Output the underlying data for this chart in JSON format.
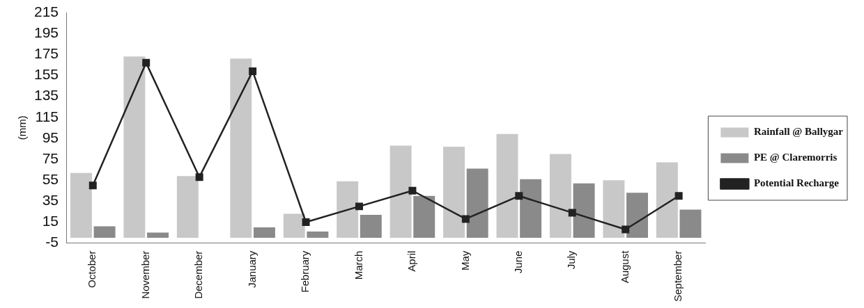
{
  "chart_data": {
    "type": "bar",
    "ylabel": "(mm)",
    "categories": [
      "October",
      "November",
      "December",
      "January",
      "February",
      "March",
      "April",
      "May",
      "June",
      "July",
      "August",
      "September"
    ],
    "series": [
      {
        "name": "Rainfall @ Ballygar",
        "color": "#c8c8c8",
        "values": [
          62,
          173,
          59,
          171,
          23,
          54,
          88,
          87,
          99,
          80,
          55,
          72
        ]
      },
      {
        "name": "PE @ Claremorris",
        "color": "#8a8a8a",
        "values": [
          11,
          5,
          0,
          10,
          6,
          22,
          40,
          66,
          56,
          52,
          43,
          27
        ]
      },
      {
        "name": "Potential Recharge",
        "type": "line",
        "color": "#222222",
        "values": [
          50,
          167,
          58,
          159,
          15,
          30,
          45,
          18,
          40,
          24,
          8,
          40
        ]
      }
    ],
    "ylim": [
      -5,
      215
    ],
    "yticks": [
      -5,
      15,
      35,
      55,
      75,
      95,
      115,
      135,
      155,
      175,
      195,
      215
    ],
    "grid": false,
    "legend": "right",
    "marker": "square"
  }
}
